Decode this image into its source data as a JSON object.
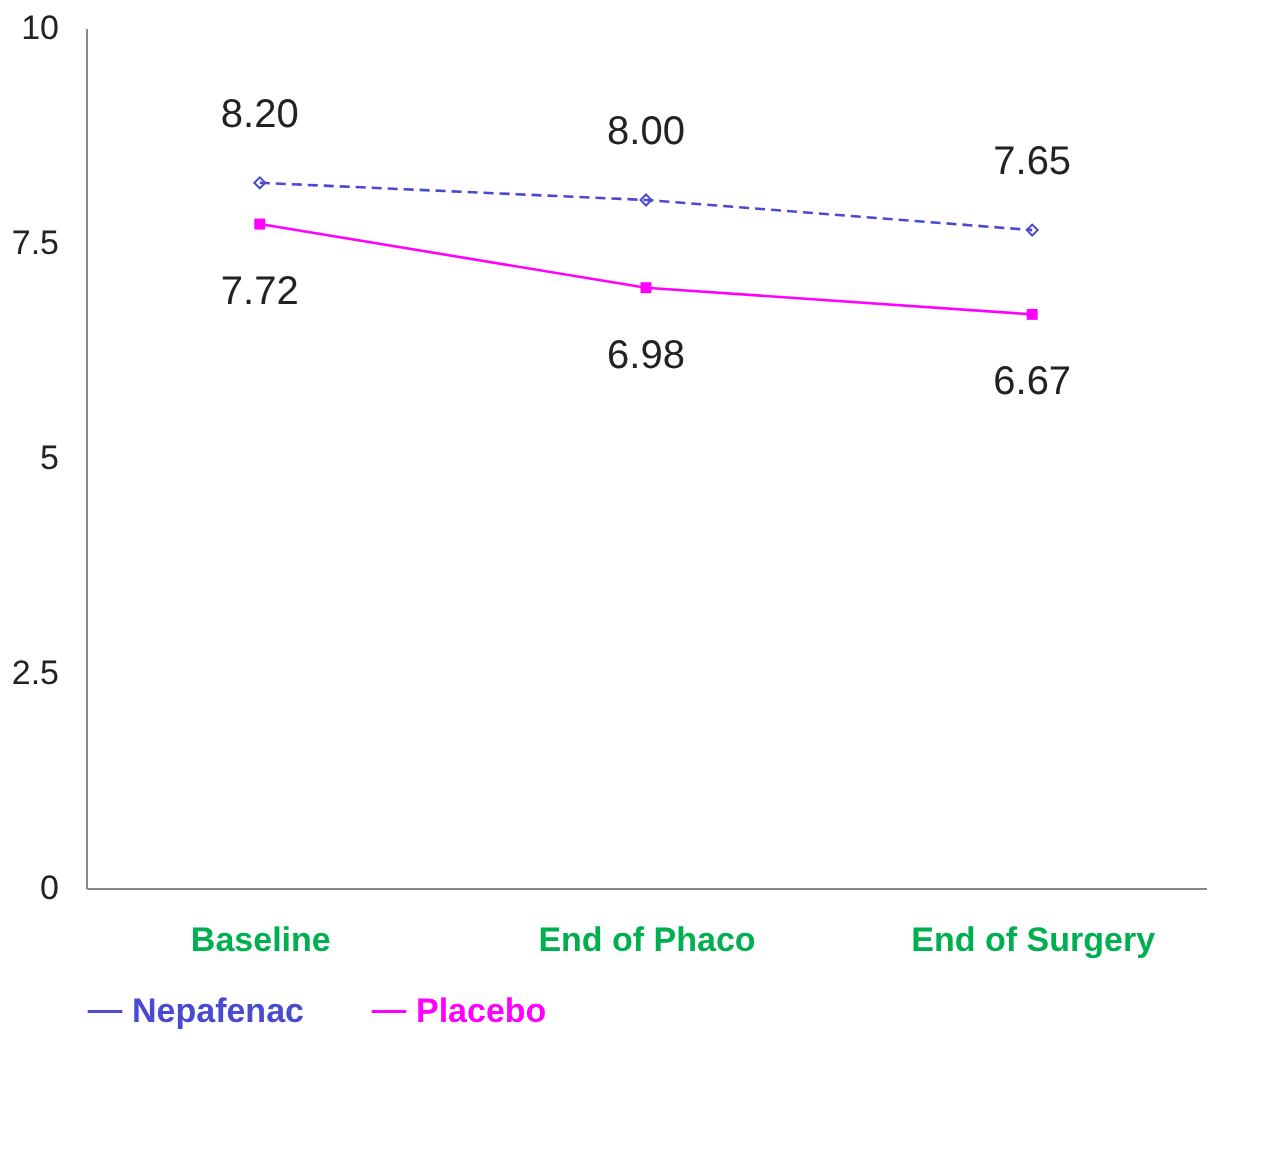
{
  "chart_data": {
    "type": "line",
    "categories": [
      "Baseline",
      "End of Phaco",
      "End of Surgery"
    ],
    "series": [
      {
        "name": "Nepafenac",
        "color": "#4a4ad0",
        "values": [
          8.2,
          8.0,
          7.65
        ],
        "value_labels": [
          "8.20",
          "8.00",
          "7.65"
        ],
        "marker": "diamond",
        "line_style": "dashed"
      },
      {
        "name": "Placebo",
        "color": "#ff00ff",
        "values": [
          7.72,
          6.98,
          6.67
        ],
        "value_labels": [
          "7.72",
          "6.98",
          "6.67"
        ],
        "marker": "square",
        "line_style": "solid"
      }
    ],
    "ylim": [
      0,
      10
    ],
    "yticks": [
      0,
      2.5,
      5,
      7.5,
      10
    ],
    "legend": "bottom"
  }
}
